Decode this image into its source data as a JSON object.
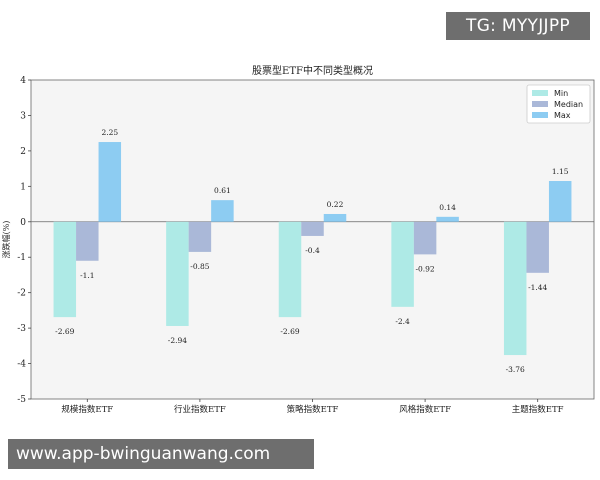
{
  "badge": {
    "text": "TG: MYYJJPP"
  },
  "watermark": {
    "text": "www.app-bwinguanwang.com"
  },
  "chart_data": {
    "type": "bar",
    "title": "股票型ETF中不同类型概况",
    "ylabel": "涨跌幅(%)",
    "xlabel": "",
    "ylim": [
      -5,
      4
    ],
    "yticks": [
      -5,
      -4,
      -3,
      -2,
      -1,
      0,
      1,
      2,
      3,
      4
    ],
    "grid": false,
    "legend_position": "top-right",
    "categories": [
      "规模指数ETF",
      "行业指数ETF",
      "策略指数ETF",
      "风格指数ETF",
      "主题指数ETF"
    ],
    "series": [
      {
        "name": "Min",
        "color": "#aeeae6",
        "values": [
          -2.69,
          -2.94,
          -2.69,
          -2.4,
          -3.76
        ],
        "labels": [
          "-2.69",
          "-2.94",
          "-2.69",
          "-2.4",
          "-3.76"
        ]
      },
      {
        "name": "Median",
        "color": "#aab8d8",
        "values": [
          -1.1,
          -0.85,
          -0.4,
          -0.92,
          -1.44
        ],
        "labels": [
          "-1.1",
          "-0.85",
          "-0.4",
          "-0.92",
          "-1.44"
        ]
      },
      {
        "name": "Max",
        "color": "#8dccf2",
        "values": [
          2.25,
          0.61,
          0.22,
          0.14,
          1.15
        ],
        "labels": [
          "2.25",
          "0.61",
          "0.22",
          "0.14",
          "1.15"
        ]
      }
    ]
  }
}
